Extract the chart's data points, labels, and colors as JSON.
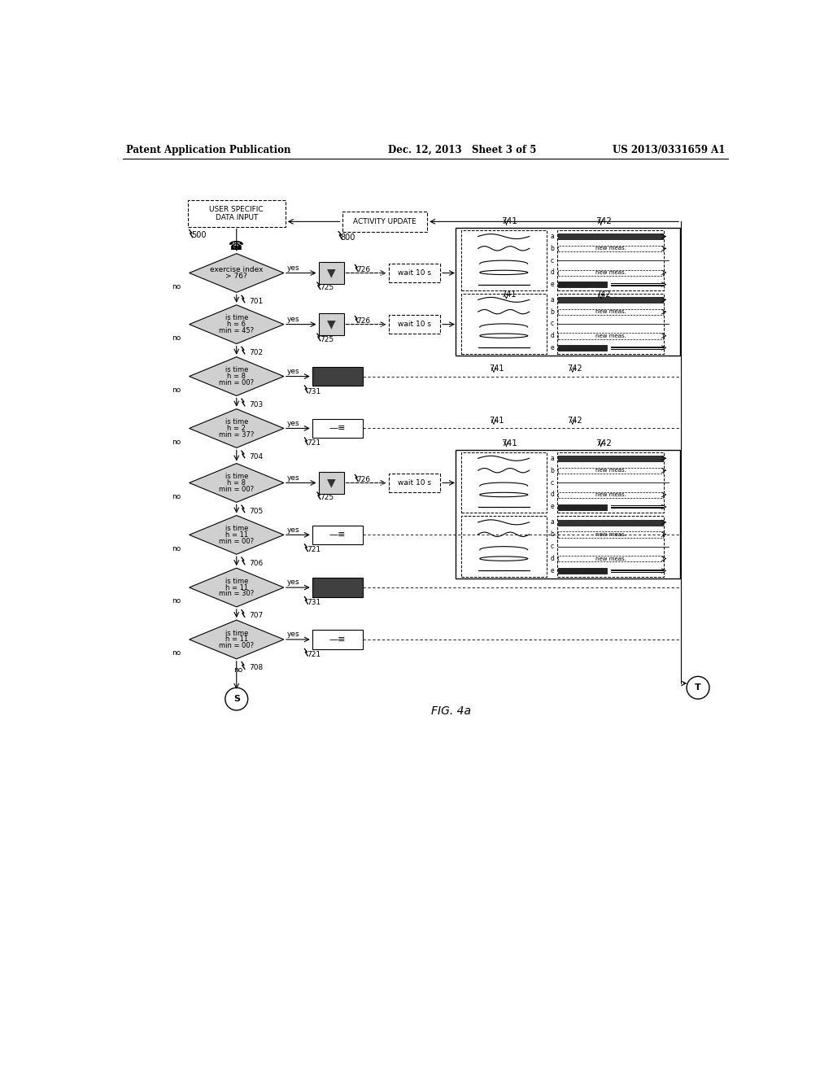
{
  "title_left": "Patent Application Publication",
  "title_mid": "Dec. 12, 2013   Sheet 3 of 5",
  "title_right": "US 2013/0331659 A1",
  "fig_label": "FIG. 4a",
  "bg_color": "#ffffff",
  "diamond_fill": "#d0d0d0",
  "box_fill": "#d0d0d0",
  "dark_fill": "#404040",
  "border_color": "#000000"
}
